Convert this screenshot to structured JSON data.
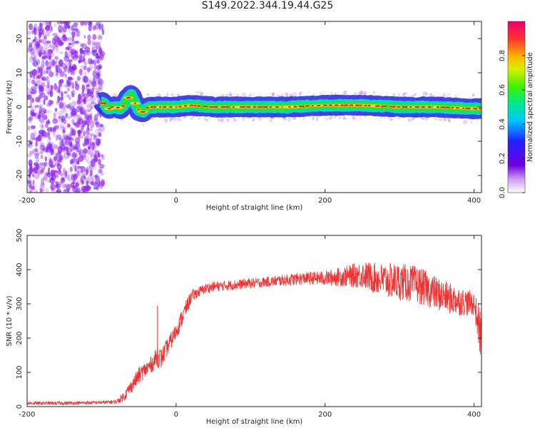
{
  "title": "S149.2022.344.19.44.G25",
  "colors": {
    "line": "#ee3333",
    "axis": "#222222",
    "bg": "#ffffff"
  },
  "chart_data": [
    {
      "type": "heatmap",
      "title": "",
      "xlabel": "Height of straight line (km)",
      "ylabel": "Frequency (Hz)",
      "xlim": [
        -200,
        410
      ],
      "ylim": [
        -25,
        25
      ],
      "xticks": [
        "-200",
        "0",
        "200",
        "400"
      ],
      "yticks": [
        "-20",
        "-10",
        "0",
        "10",
        "20"
      ],
      "colorbar": {
        "label": "Normalized spectral amplitude",
        "range": [
          0,
          1
        ],
        "ticks": [
          "0.0",
          "0.2",
          "0.4",
          "0.6",
          "0.8"
        ]
      },
      "noise_region_x": [
        -200,
        -100
      ],
      "ridge": {
        "x": [
          -100,
          -95,
          -90,
          -85,
          -80,
          -75,
          -70,
          -65,
          -60,
          -55,
          -50,
          -45,
          -40,
          -35,
          -30,
          -20,
          -10,
          0,
          20,
          50,
          100,
          150,
          200,
          250,
          300,
          350,
          400,
          410
        ],
        "y": [
          1.5,
          0.5,
          -0.5,
          0.0,
          0.0,
          -0.5,
          0.5,
          2.5,
          3.5,
          1.0,
          -1.0,
          -1.5,
          -0.5,
          0.0,
          0.0,
          0.0,
          0.0,
          0.0,
          0.5,
          0.0,
          0.0,
          0.0,
          0.5,
          0.5,
          0.0,
          0.0,
          -0.5,
          -0.5
        ]
      }
    },
    {
      "type": "line",
      "title": "",
      "xlabel": "Height of straight line (km)",
      "ylabel": "SNR (10 * v/v)",
      "xlim": [
        -200,
        410
      ],
      "ylim": [
        0,
        500
      ],
      "xticks": [
        "-200",
        "0",
        "200",
        "400"
      ],
      "yticks": [
        "0",
        "100",
        "200",
        "300",
        "400",
        "500"
      ],
      "series": [
        {
          "x": [
            -200,
            -150,
            -100,
            -80,
            -70,
            -60,
            -50,
            -40,
            -30,
            -25,
            -20,
            -10,
            0,
            10,
            20,
            30,
            40,
            50,
            75,
            100,
            125,
            150,
            175,
            200,
            225,
            250,
            275,
            300,
            325,
            350,
            375,
            400,
            410
          ],
          "values": [
            10,
            10,
            12,
            14,
            30,
            60,
            90,
            110,
            130,
            150,
            140,
            180,
            220,
            270,
            320,
            335,
            345,
            350,
            355,
            360,
            365,
            370,
            375,
            375,
            380,
            385,
            370,
            365,
            355,
            330,
            310,
            300,
            200
          ],
          "noise_amp": [
            5,
            5,
            5,
            6,
            15,
            20,
            25,
            25,
            25,
            35,
            30,
            25,
            25,
            25,
            20,
            15,
            15,
            15,
            15,
            15,
            15,
            18,
            18,
            22,
            30,
            40,
            50,
            55,
            55,
            50,
            45,
            35,
            80
          ]
        }
      ]
    }
  ]
}
